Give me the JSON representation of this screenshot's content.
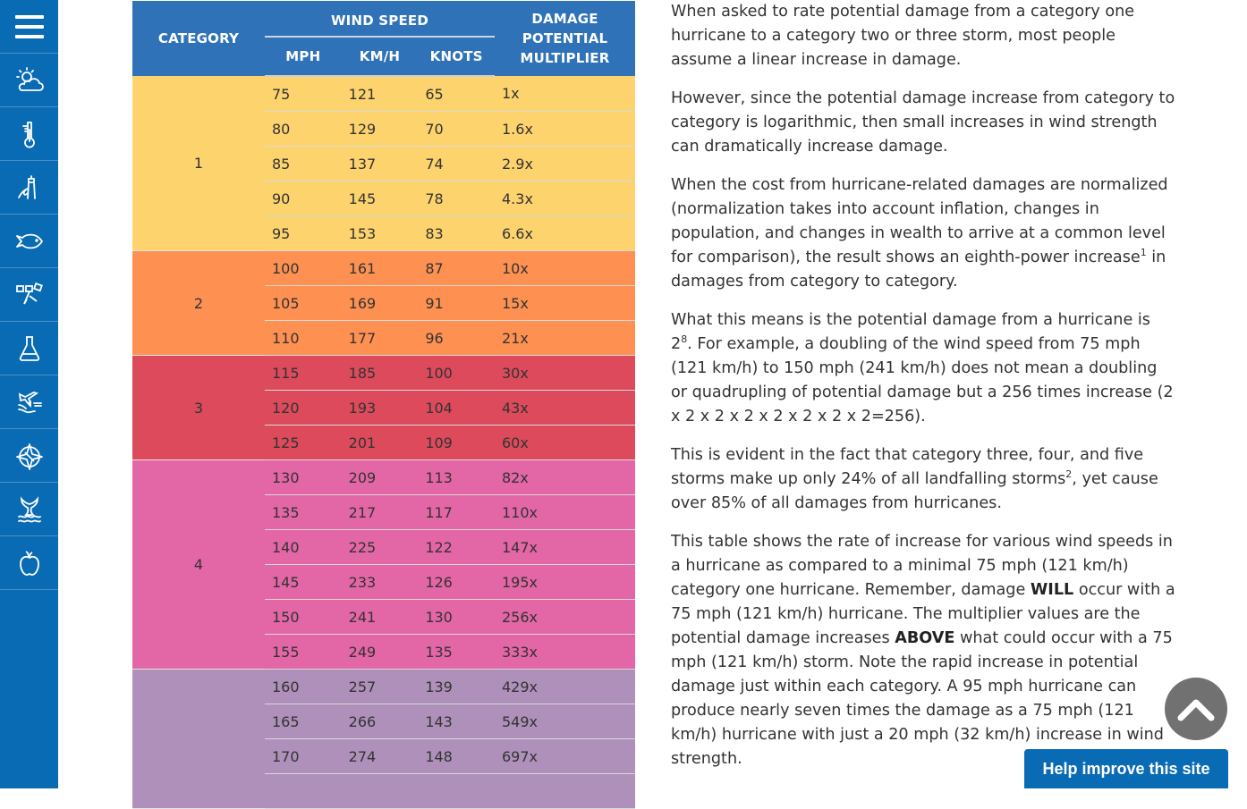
{
  "sidebar": {
    "items": [
      {
        "icon": "menu-icon",
        "label": "Menu"
      },
      {
        "icon": "weather-icon",
        "label": "Weather"
      },
      {
        "icon": "thermometer-icon",
        "label": "Climate"
      },
      {
        "icon": "lighthouse-icon",
        "label": "Coasts"
      },
      {
        "icon": "fish-icon",
        "label": "Fisheries"
      },
      {
        "icon": "satellite-icon",
        "label": "Satellites"
      },
      {
        "icon": "flask-icon",
        "label": "Research"
      },
      {
        "icon": "airplane-flood-icon",
        "label": "Hazards"
      },
      {
        "icon": "compass-icon",
        "label": "Navigation"
      },
      {
        "icon": "whale-tail-icon",
        "label": "Marine Life"
      },
      {
        "icon": "apple-icon",
        "label": "Education"
      }
    ]
  },
  "table": {
    "headers": {
      "category": "CATEGORY",
      "wind_speed": "WIND SPEED",
      "mph": "MPH",
      "kmh": "KM/H",
      "knots": "KNOTS",
      "damage": [
        "DAMAGE",
        "POTENTIAL",
        "MULTIPLIER"
      ]
    },
    "colors": {
      "header": "#2f72b8",
      "cat1": "#fdd36e",
      "cat2": "#fe9152",
      "cat3": "#dc4a5c",
      "cat4": "#e366a6",
      "cat5": "#ae90ba"
    },
    "groups": [
      {
        "category": "1",
        "rows": [
          {
            "mph": "75",
            "kmh": "121",
            "knots": "65",
            "multiplier": "1x"
          },
          {
            "mph": "80",
            "kmh": "129",
            "knots": "70",
            "multiplier": "1.6x"
          },
          {
            "mph": "85",
            "kmh": "137",
            "knots": "74",
            "multiplier": "2.9x"
          },
          {
            "mph": "90",
            "kmh": "145",
            "knots": "78",
            "multiplier": "4.3x"
          },
          {
            "mph": "95",
            "kmh": "153",
            "knots": "83",
            "multiplier": "6.6x"
          }
        ]
      },
      {
        "category": "2",
        "rows": [
          {
            "mph": "100",
            "kmh": "161",
            "knots": "87",
            "multiplier": "10x"
          },
          {
            "mph": "105",
            "kmh": "169",
            "knots": "91",
            "multiplier": "15x"
          },
          {
            "mph": "110",
            "kmh": "177",
            "knots": "96",
            "multiplier": "21x"
          }
        ]
      },
      {
        "category": "3",
        "rows": [
          {
            "mph": "115",
            "kmh": "185",
            "knots": "100",
            "multiplier": "30x"
          },
          {
            "mph": "120",
            "kmh": "193",
            "knots": "104",
            "multiplier": "43x"
          },
          {
            "mph": "125",
            "kmh": "201",
            "knots": "109",
            "multiplier": "60x"
          }
        ]
      },
      {
        "category": "4",
        "rows": [
          {
            "mph": "130",
            "kmh": "209",
            "knots": "113",
            "multiplier": "82x"
          },
          {
            "mph": "135",
            "kmh": "217",
            "knots": "117",
            "multiplier": "110x"
          },
          {
            "mph": "140",
            "kmh": "225",
            "knots": "122",
            "multiplier": "147x"
          },
          {
            "mph": "145",
            "kmh": "233",
            "knots": "126",
            "multiplier": "195x"
          },
          {
            "mph": "150",
            "kmh": "241",
            "knots": "130",
            "multiplier": "256x"
          },
          {
            "mph": "155",
            "kmh": "249",
            "knots": "135",
            "multiplier": "333x"
          }
        ]
      },
      {
        "category": "",
        "rows": [
          {
            "mph": "160",
            "kmh": "257",
            "knots": "139",
            "multiplier": "429x"
          },
          {
            "mph": "165",
            "kmh": "266",
            "knots": "143",
            "multiplier": "549x"
          },
          {
            "mph": "170",
            "kmh": "274",
            "knots": "148",
            "multiplier": "697x"
          },
          {
            "mph": "",
            "kmh": "",
            "knots": "",
            "multiplier": ""
          }
        ]
      }
    ]
  },
  "article": {
    "p1": "When asked to rate potential damage from a category one hurricane to a category two or three storm, most people assume a linear increase in damage.",
    "p2": "However, since the potential damage increase from category to category is logarithmic, then small increases in wind strength can dramatically increase damage.",
    "p3_a": "When the cost from hurricane-related damages are normalized (normalization takes into account inflation, changes in population, and changes in wealth to arrive at a common level for comparison), the result shows an eighth-power increase",
    "p3_sup": "1",
    "p3_b": " in damages from category to category.",
    "p4_a": "What this means is the potential damage from a hurricane is 2",
    "p4_sup": "8",
    "p4_b": ". For example, a doubling of the wind speed from 75 mph (121 km/h) to 150 mph (241 km/h) does not mean a doubling or quadrupling of potential damage but a 256 times increase (2 x 2 x 2 x 2 x 2 x 2 x 2 x 2=256).",
    "p5_a": "This is evident in the fact that category three, four, and five storms make up only 24% of all landfalling storms",
    "p5_sup": "2",
    "p5_b": ", yet cause over 85% of all damages from hurricanes.",
    "p6_a": "This table shows the rate of increase for various wind speeds in a hurricane as compared to a minimal 75 mph (121 km/h) category one hurricane. Remember, damage ",
    "p6_bold1": "WILL",
    "p6_b": " occur with a 75 mph (121 km/h) hurricane. The multiplier values are the potential damage increases ",
    "p6_bold2": "ABOVE",
    "p6_c": " what could occur with a 75 mph (121 km/h) storm. Note the rapid increase in potential damage just within each category. A 95 mph hurricane can produce nearly seven times the damage as a 75 mph (121 km/h) hurricane with just a 20 mph (32 km/h) increase in wind strength."
  },
  "widgets": {
    "back_to_top_icon": "chevron-up-icon",
    "help_button": "Help improve this site"
  }
}
